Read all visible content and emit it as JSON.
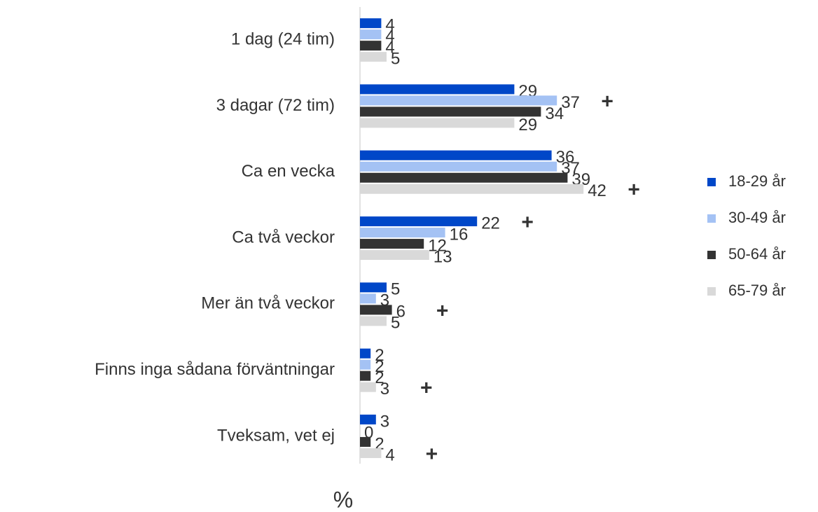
{
  "chart_data": {
    "type": "hbar",
    "categories": [
      "1 dag (24 tim)",
      "3 dagar (72 tim)",
      "Ca en vecka",
      "Ca två veckor",
      "Mer än två veckor",
      "Finns inga sådana förväntningar",
      "Tveksam, vet ej"
    ],
    "series": [
      {
        "name": "18-29 år",
        "color": "#0047c8",
        "values": [
          4,
          29,
          36,
          22,
          5,
          2,
          3
        ],
        "flags": [
          null,
          null,
          null,
          "+",
          null,
          null,
          null
        ]
      },
      {
        "name": "30-49 år",
        "color": "#a4c2f4",
        "values": [
          4,
          37,
          37,
          16,
          3,
          2,
          0
        ],
        "flags": [
          null,
          "+",
          null,
          null,
          null,
          null,
          null
        ]
      },
      {
        "name": "50-64 år",
        "color": "#333333",
        "values": [
          4,
          34,
          39,
          12,
          6,
          2,
          2
        ],
        "flags": [
          null,
          null,
          null,
          null,
          "+",
          null,
          null
        ]
      },
      {
        "name": "65-79 år",
        "color": "#d9d9d9",
        "values": [
          5,
          29,
          42,
          13,
          5,
          3,
          4
        ],
        "flags": [
          null,
          null,
          "+",
          null,
          null,
          "+",
          "+"
        ]
      }
    ],
    "xlim": [
      0,
      60
    ],
    "xlabel": "%",
    "legend": "right"
  }
}
